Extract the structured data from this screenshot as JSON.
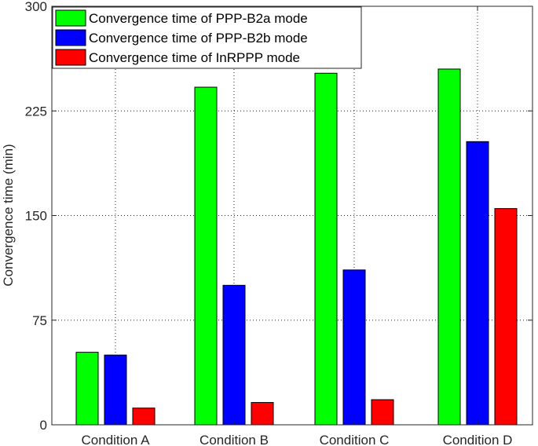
{
  "chart_data": {
    "type": "bar",
    "categories": [
      "Condition A",
      "Condition B",
      "Condition C",
      "Condition D"
    ],
    "series": [
      {
        "name": "Convergence time of PPP-B2a mode",
        "values": [
          52,
          242,
          252,
          255
        ],
        "color": "#00ff00"
      },
      {
        "name": "Convergence time of PPP-B2b mode",
        "values": [
          50,
          100,
          111,
          203
        ],
        "color": "#0000ff"
      },
      {
        "name": "Convergence time of InRPPP mode",
        "values": [
          12,
          16,
          18,
          155
        ],
        "color": "#ff0000"
      }
    ],
    "title": "",
    "xlabel": "",
    "ylabel": "Convergence time (min)",
    "ylim": [
      0,
      300
    ],
    "yticks": [
      0,
      75,
      150,
      225,
      300
    ],
    "grid": true,
    "legend_position": "top-left"
  }
}
